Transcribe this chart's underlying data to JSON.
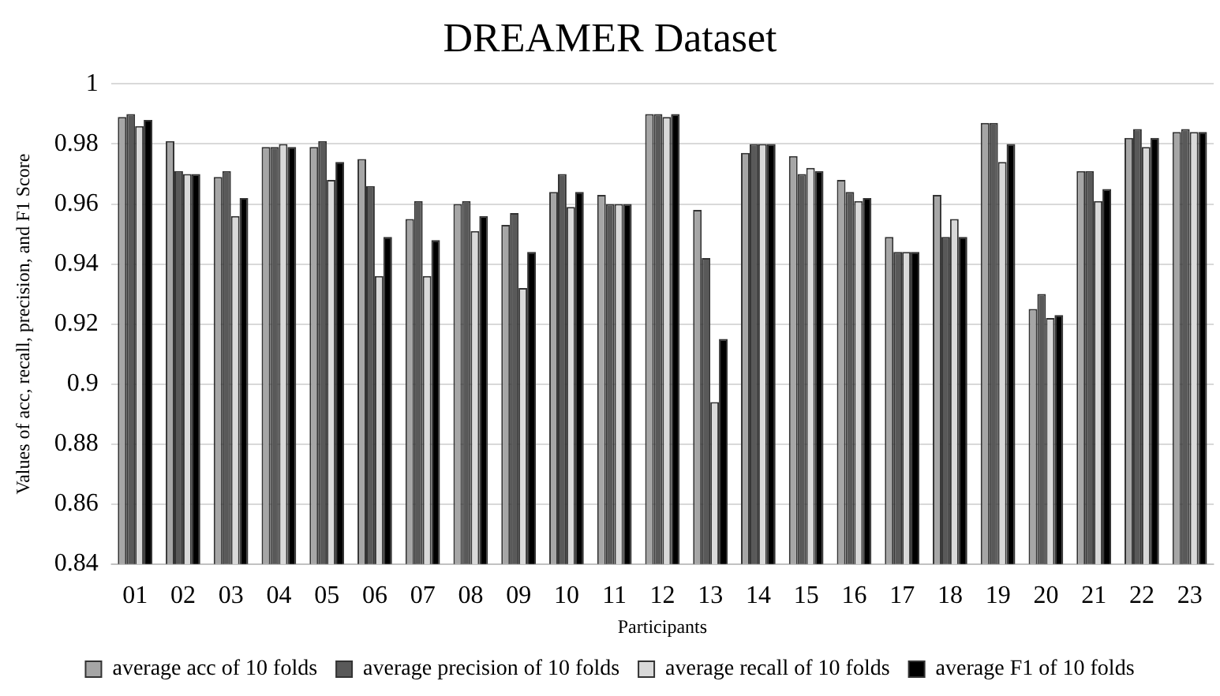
{
  "chart_data": {
    "type": "bar",
    "title": "DREAMER Dataset",
    "xlabel": "Participants",
    "ylabel": "Values of acc, recall, precision, and F1 Score",
    "categories": [
      "01",
      "02",
      "03",
      "04",
      "05",
      "06",
      "07",
      "08",
      "09",
      "10",
      "11",
      "12",
      "13",
      "14",
      "15",
      "16",
      "17",
      "18",
      "19",
      "20",
      "21",
      "22",
      "23"
    ],
    "series": [
      {
        "name": "average acc of 10 folds",
        "color": "#a6a6a6",
        "values": [
          0.989,
          0.981,
          0.969,
          0.979,
          0.979,
          0.975,
          0.955,
          0.96,
          0.953,
          0.964,
          0.963,
          0.99,
          0.958,
          0.977,
          0.976,
          0.968,
          0.949,
          0.963,
          0.987,
          0.925,
          0.971,
          0.982,
          0.984
        ]
      },
      {
        "name": "average precision of 10 folds",
        "color": "#595959",
        "values": [
          0.99,
          0.971,
          0.971,
          0.979,
          0.981,
          0.966,
          0.961,
          0.961,
          0.957,
          0.97,
          0.96,
          0.99,
          0.942,
          0.98,
          0.97,
          0.964,
          0.944,
          0.949,
          0.987,
          0.93,
          0.971,
          0.985,
          0.985
        ]
      },
      {
        "name": "average recall of 10 folds",
        "color": "#d9d9d9",
        "values": [
          0.986,
          0.97,
          0.956,
          0.98,
          0.968,
          0.936,
          0.936,
          0.951,
          0.932,
          0.959,
          0.96,
          0.989,
          0.894,
          0.98,
          0.972,
          0.961,
          0.944,
          0.955,
          0.974,
          0.922,
          0.961,
          0.979,
          0.984
        ]
      },
      {
        "name": "average F1 of 10 folds",
        "color": "#000000",
        "values": [
          0.988,
          0.97,
          0.962,
          0.979,
          0.974,
          0.949,
          0.948,
          0.956,
          0.944,
          0.964,
          0.96,
          0.99,
          0.915,
          0.98,
          0.971,
          0.962,
          0.944,
          0.949,
          0.98,
          0.923,
          0.965,
          0.982,
          0.984
        ]
      }
    ],
    "ylim": [
      0.84,
      1
    ],
    "yticks": [
      0.84,
      0.86,
      0.88,
      0.9,
      0.92,
      0.94,
      0.96,
      0.98,
      1
    ],
    "grid": "y",
    "legend": "bottom"
  }
}
